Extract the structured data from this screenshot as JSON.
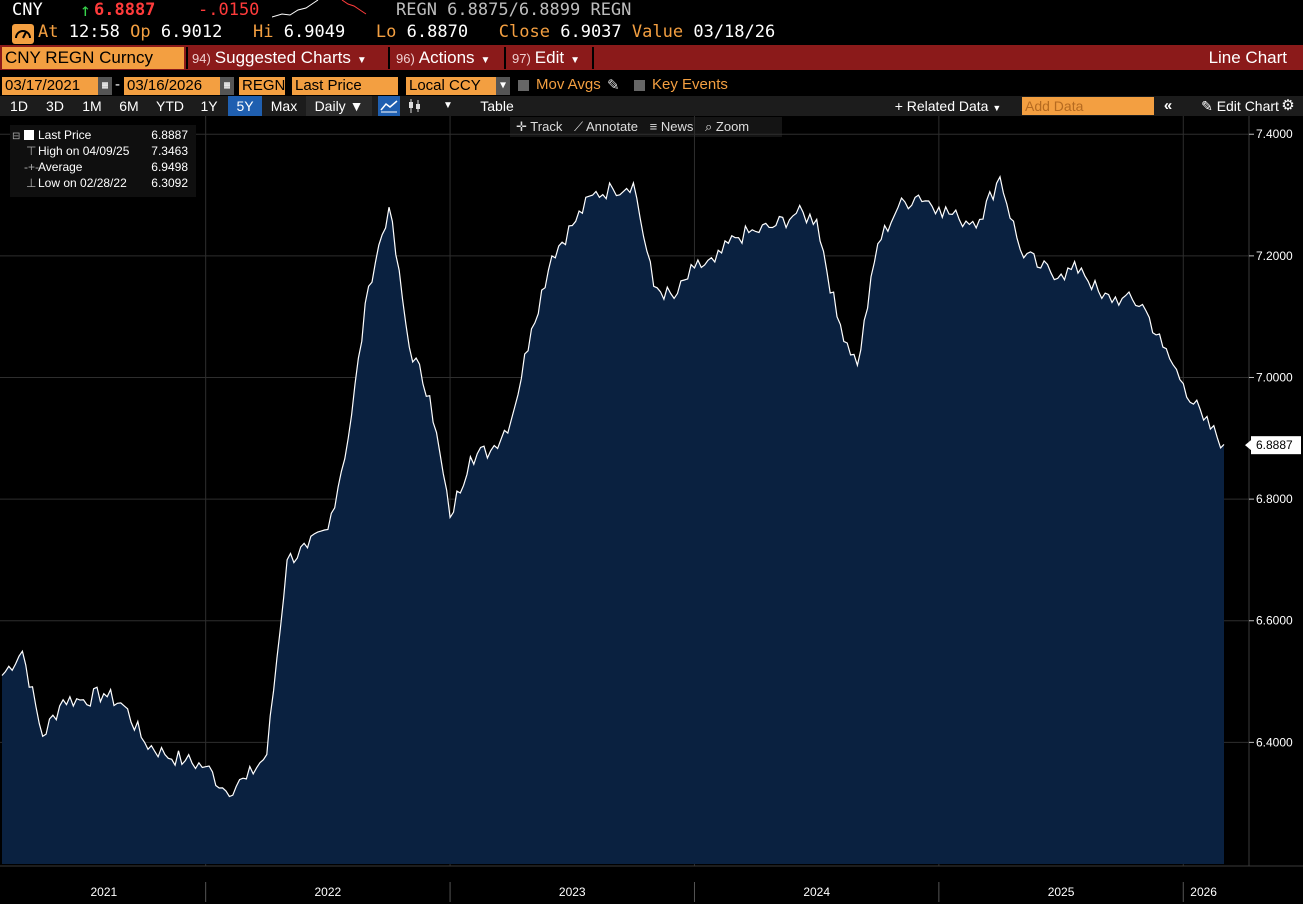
{
  "header": {
    "currency": "CNY",
    "last": "6.8887",
    "change": "-.0150",
    "quote": "REGN 6.8875/6.8899 REGN",
    "at_label": "At",
    "at": "12:58",
    "op_label": "Op",
    "op": "6.9012",
    "hi_label": "Hi",
    "hi": "6.9049",
    "lo_label": "Lo",
    "lo": "6.8870",
    "close_label": "Close",
    "close": "6.9037",
    "value_label": "Value",
    "value": "03/18/26"
  },
  "menubar": {
    "security": "CNY REGN Curncy",
    "suggested_num": "94)",
    "suggested": "Suggested Charts",
    "actions_num": "96)",
    "actions": "Actions",
    "edit_num": "97)",
    "edit": "Edit",
    "chart_type": "Line Chart"
  },
  "controls": {
    "start_date": "03/17/2021",
    "dash": "-",
    "end_date": "03/16/2026",
    "source": "REGN",
    "field": "Last Price",
    "currency": "Local CCY",
    "mov_avgs": "Mov Avgs",
    "key_events": "Key Events"
  },
  "periods": [
    "1D",
    "3D",
    "1M",
    "6M",
    "YTD",
    "1Y",
    "5Y",
    "Max"
  ],
  "selected_period": "5Y",
  "toolbar": {
    "frequency": "Daily ▼",
    "table": "Table",
    "related": "+ Related Data",
    "add_data_placeholder": "Add Data",
    "edit_chart": "Edit Chart"
  },
  "chart_toolbar": {
    "track": "Track",
    "annotate": "Annotate",
    "news": "News",
    "zoom": "Zoom"
  },
  "legend": [
    {
      "label": "Last Price",
      "value": "6.8887"
    },
    {
      "label": "High on 04/09/25",
      "value": "7.3463"
    },
    {
      "label": "Average",
      "value": "6.9498"
    },
    {
      "label": "Low on 02/28/22",
      "value": "6.3092"
    }
  ],
  "colors": {
    "accent": "#f39f41",
    "menubar": "#8b1a1a",
    "area_fill": "#0a2140",
    "line": "#ffffff"
  },
  "chart_data": {
    "type": "area",
    "ylim": [
      6.2,
      7.43
    ],
    "yticks": [
      "7.4000",
      "7.2000",
      "7.0000",
      "6.8000",
      "6.6000",
      "6.4000"
    ],
    "xlabels": [
      "2021",
      "2022",
      "2023",
      "2024",
      "2025",
      "2026"
    ],
    "last_value_label": "6.8887",
    "x": [
      "2021-03",
      "2021-04",
      "2021-05",
      "2021-06",
      "2021-07",
      "2021-08",
      "2021-09",
      "2021-10",
      "2021-11",
      "2021-12",
      "2022-01",
      "2022-02",
      "2022-03",
      "2022-04",
      "2022-05",
      "2022-06",
      "2022-07",
      "2022-08",
      "2022-09",
      "2022-10",
      "2022-11",
      "2022-12",
      "2023-01",
      "2023-02",
      "2023-03",
      "2023-04",
      "2023-05",
      "2023-06",
      "2023-07",
      "2023-08",
      "2023-09",
      "2023-10",
      "2023-11",
      "2023-12",
      "2024-01",
      "2024-02",
      "2024-03",
      "2024-04",
      "2024-05",
      "2024-06",
      "2024-07",
      "2024-08",
      "2024-09",
      "2024-10",
      "2024-11",
      "2024-12",
      "2025-01",
      "2025-02",
      "2025-03",
      "2025-04",
      "2025-05",
      "2025-06",
      "2025-07",
      "2025-08",
      "2025-09",
      "2025-10",
      "2025-11",
      "2025-12",
      "2026-01",
      "2026-02",
      "2026-03"
    ],
    "series": [
      {
        "values": [
          6.51,
          6.55,
          6.41,
          6.47,
          6.47,
          6.48,
          6.46,
          6.4,
          6.38,
          6.37,
          6.36,
          6.32,
          6.34,
          6.38,
          6.7,
          6.72,
          6.75,
          6.9,
          7.15,
          7.28,
          7.05,
          6.97,
          6.77,
          6.87,
          6.88,
          6.93,
          7.08,
          7.2,
          7.25,
          7.3,
          7.31,
          7.32,
          7.15,
          7.13,
          7.18,
          7.19,
          7.23,
          7.24,
          7.25,
          7.27,
          7.26,
          7.1,
          7.02,
          7.22,
          7.28,
          7.3,
          7.28,
          7.26,
          7.26,
          7.33,
          7.21,
          7.18,
          7.17,
          7.18,
          7.13,
          7.13,
          7.12,
          7.05,
          6.99,
          6.93,
          6.89
        ]
      }
    ]
  }
}
